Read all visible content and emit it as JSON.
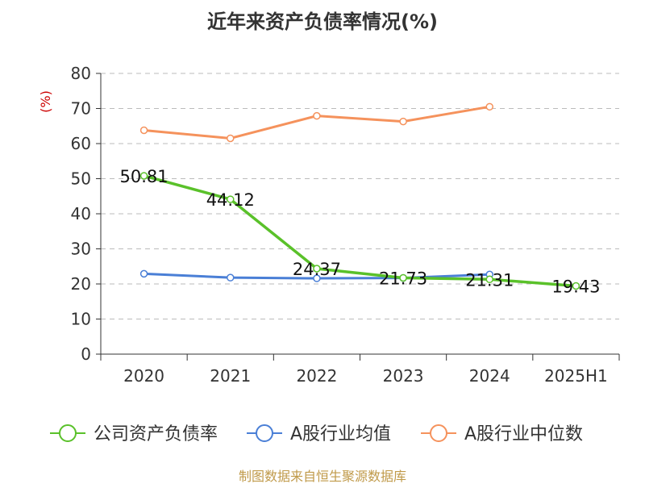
{
  "chart_data": {
    "type": "line",
    "title": "近年来资产负债率情况(%)",
    "ylabel": "(%)",
    "xlabel": "",
    "categories": [
      "2020",
      "2021",
      "2022",
      "2023",
      "2024",
      "2025H1"
    ],
    "ylim": [
      0,
      80
    ],
    "yticks": [
      0,
      10,
      20,
      30,
      40,
      50,
      60,
      70,
      80
    ],
    "grid": true,
    "legend_position": "bottom",
    "series": [
      {
        "name": "公司资产负债率",
        "color": "#5ac12a",
        "values": [
          50.81,
          44.12,
          24.37,
          21.73,
          21.31,
          19.43
        ],
        "labels": [
          "50.81",
          "44.12",
          "24.37",
          "21.73",
          "21.31",
          "19.43"
        ]
      },
      {
        "name": "A股行业均值",
        "color": "#4a7fd6",
        "values": [
          22.9,
          21.8,
          21.6,
          21.7,
          22.7,
          null
        ]
      },
      {
        "name": "A股行业中位数",
        "color": "#f5925c",
        "values": [
          63.8,
          61.5,
          67.9,
          66.3,
          70.5,
          null
        ]
      }
    ]
  },
  "footer": {
    "source": "制图数据来自恒生聚源数据库"
  }
}
